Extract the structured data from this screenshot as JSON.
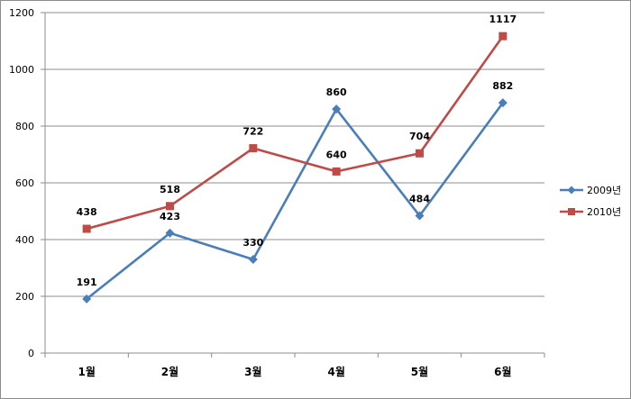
{
  "chart_data": {
    "type": "line",
    "categories": [
      "1월",
      "2월",
      "3월",
      "4월",
      "5월",
      "6월"
    ],
    "series": [
      {
        "name": "2009년",
        "color": "#4a7ebb",
        "marker": "diamond",
        "values": [
          191,
          423,
          330,
          860,
          484,
          882
        ]
      },
      {
        "name": "2010년",
        "color": "#be4b48",
        "marker": "square",
        "values": [
          438,
          518,
          722,
          640,
          704,
          1117
        ]
      }
    ],
    "title": "",
    "xlabel": "",
    "ylabel": "",
    "ylim": [
      0,
      1200
    ],
    "yticks": [
      0,
      200,
      400,
      600,
      800,
      1000,
      1200
    ],
    "grid": true,
    "legend": "right",
    "data_labels": true
  }
}
